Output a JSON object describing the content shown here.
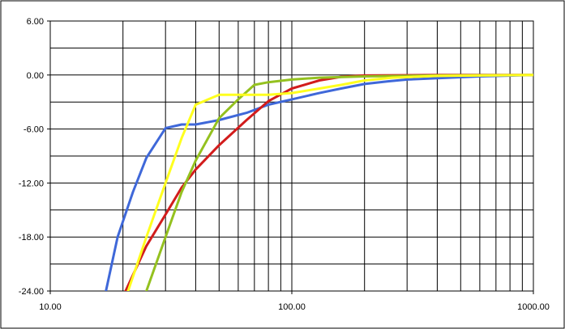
{
  "chart_data": {
    "type": "line",
    "title": "",
    "xlabel": "",
    "ylabel": "",
    "xscale": "log",
    "xlim": [
      10,
      1000
    ],
    "ylim": [
      -24,
      6
    ],
    "grid": true,
    "legend": "none",
    "y_ticks": [
      {
        "value": -24,
        "label": "-24.00"
      },
      {
        "value": -18,
        "label": "-18.00"
      },
      {
        "value": -12,
        "label": "-12.00"
      },
      {
        "value": -6,
        "label": "-6.00"
      },
      {
        "value": 0,
        "label": "0.00"
      },
      {
        "value": 6,
        "label": "6.00"
      }
    ],
    "x_ticks": [
      {
        "value": 10,
        "label": "10.00"
      },
      {
        "value": 100,
        "label": "100.00"
      },
      {
        "value": 1000,
        "label": "1000.00"
      }
    ],
    "series": [
      {
        "color": "#3f68d9",
        "points": [
          [
            17,
            -24
          ],
          [
            19,
            -18
          ],
          [
            22,
            -13
          ],
          [
            25,
            -9.2
          ],
          [
            30,
            -5.9
          ],
          [
            35,
            -5.5
          ],
          [
            40,
            -5.5
          ],
          [
            50,
            -5.0
          ],
          [
            65,
            -4.2
          ],
          [
            80,
            -3.3
          ],
          [
            100,
            -2.7
          ],
          [
            130,
            -2.0
          ],
          [
            160,
            -1.5
          ],
          [
            200,
            -1.0
          ],
          [
            250,
            -0.7
          ],
          [
            300,
            -0.5
          ],
          [
            400,
            -0.35
          ],
          [
            600,
            -0.15
          ],
          [
            1000,
            0
          ]
        ]
      },
      {
        "color": "#d21c1c",
        "points": [
          [
            20.5,
            -24
          ],
          [
            25,
            -19
          ],
          [
            30,
            -15.5
          ],
          [
            35,
            -12.5
          ],
          [
            40,
            -10.5
          ],
          [
            50,
            -7.8
          ],
          [
            65,
            -5.0
          ],
          [
            80,
            -2.9
          ],
          [
            100,
            -1.5
          ],
          [
            130,
            -0.6
          ],
          [
            160,
            -0.2
          ],
          [
            200,
            -0.05
          ],
          [
            400,
            0
          ],
          [
            1000,
            0
          ]
        ]
      },
      {
        "color": "#94c11f",
        "points": [
          [
            25,
            -24
          ],
          [
            30,
            -18
          ],
          [
            35,
            -13
          ],
          [
            40,
            -9.5
          ],
          [
            50,
            -4.8
          ],
          [
            60,
            -2.7
          ],
          [
            70,
            -1.1
          ],
          [
            80,
            -0.8
          ],
          [
            100,
            -0.5
          ],
          [
            130,
            -0.3
          ],
          [
            200,
            -0.15
          ],
          [
            400,
            -0.05
          ],
          [
            1000,
            0
          ]
        ]
      },
      {
        "color": "#ffff1e",
        "points": [
          [
            21,
            -24
          ],
          [
            25,
            -18
          ],
          [
            30,
            -12
          ],
          [
            35,
            -7
          ],
          [
            40,
            -3.3
          ],
          [
            50,
            -2.2
          ],
          [
            60,
            -2.2
          ],
          [
            80,
            -2.2
          ],
          [
            100,
            -2.0
          ],
          [
            130,
            -1.5
          ],
          [
            160,
            -1.1
          ],
          [
            200,
            -0.6
          ],
          [
            260,
            -0.3
          ],
          [
            400,
            -0.1
          ],
          [
            1000,
            0
          ]
        ]
      }
    ]
  }
}
